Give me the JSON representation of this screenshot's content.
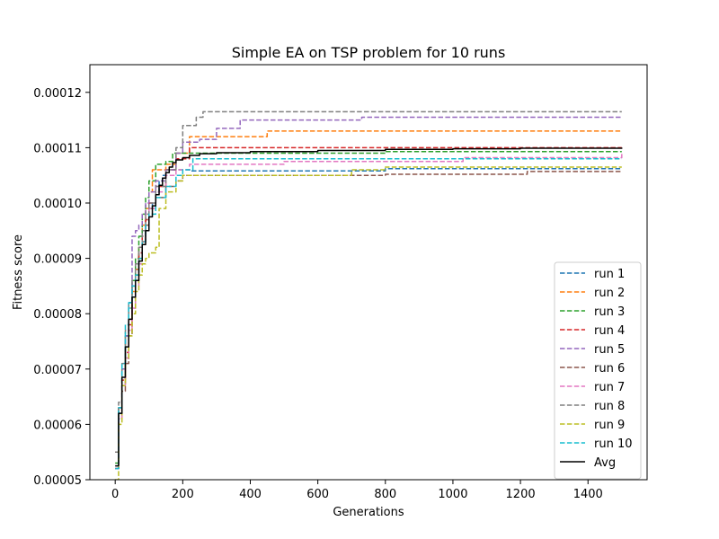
{
  "chart_data": {
    "type": "line",
    "title": "Simple EA on TSP problem for 10 runs",
    "xlabel": "Generations",
    "ylabel": "Fitness score",
    "xlim": [
      -75,
      1575
    ],
    "ylim": [
      5e-05,
      0.000125
    ],
    "xticks": [
      0,
      200,
      400,
      600,
      800,
      1000,
      1200,
      1400
    ],
    "xtick_labels": [
      "0",
      "200",
      "400",
      "600",
      "800",
      "1000",
      "1200",
      "1400"
    ],
    "yticks": [
      5e-05,
      6e-05,
      7e-05,
      8e-05,
      9e-05,
      0.0001,
      0.00011,
      0.00012
    ],
    "ytick_labels": [
      "0.00005",
      "0.00006",
      "0.00007",
      "0.00008",
      "0.00009",
      "0.00010",
      "0.00011",
      "0.00012"
    ],
    "grid": false,
    "legend_position": "lower right",
    "series": [
      {
        "name": "run 1",
        "color": "#1f77b4",
        "style": "dashed",
        "x": [
          0,
          10,
          20,
          30,
          40,
          50,
          60,
          70,
          80,
          90,
          100,
          110,
          120,
          130,
          140,
          150,
          200,
          220,
          400,
          800,
          1500
        ],
        "y": [
          5.2e-05,
          6.2e-05,
          7e-05,
          7.6e-05,
          8.1e-05,
          8.5e-05,
          8.8e-05,
          9.1e-05,
          9.4e-05,
          9.7e-05,
          9.9e-05,
          0.0001,
          0.000102,
          0.000104,
          0.000105,
          0.000106,
          0.000106,
          0.0001058,
          0.0001058,
          0.0001062,
          0.0001062
        ]
      },
      {
        "name": "run 2",
        "color": "#ff7f0e",
        "style": "dashed",
        "x": [
          0,
          10,
          20,
          30,
          40,
          50,
          60,
          70,
          80,
          90,
          100,
          110,
          130,
          150,
          180,
          220,
          300,
          450,
          550,
          1000,
          1500
        ],
        "y": [
          5.2e-05,
          6.1e-05,
          6.8e-05,
          7.4e-05,
          7.9e-05,
          8.4e-05,
          8.8e-05,
          9.2e-05,
          9.6e-05,
          9.9e-05,
          0.000102,
          0.000106,
          0.000106,
          0.000107,
          0.000109,
          0.000112,
          0.000112,
          0.000113,
          0.000113,
          0.000113,
          0.000113
        ]
      },
      {
        "name": "run 3",
        "color": "#2ca02c",
        "style": "dashed",
        "x": [
          0,
          10,
          20,
          30,
          40,
          50,
          60,
          70,
          80,
          90,
          100,
          120,
          150,
          170,
          200,
          300,
          800,
          1500
        ],
        "y": [
          5.3e-05,
          6.3e-05,
          7e-05,
          7.6e-05,
          8.1e-05,
          8.6e-05,
          9e-05,
          9.4e-05,
          9.8e-05,
          0.000101,
          0.000104,
          0.000107,
          0.0001075,
          0.000109,
          0.000109,
          0.000109,
          0.0001093,
          0.0001093
        ]
      },
      {
        "name": "run 4",
        "color": "#d62728",
        "style": "dashed",
        "x": [
          0,
          10,
          20,
          30,
          40,
          50,
          60,
          70,
          80,
          90,
          100,
          120,
          150,
          180,
          220,
          400,
          800,
          1500
        ],
        "y": [
          5.2e-05,
          6.1e-05,
          6.8e-05,
          7.3e-05,
          7.8e-05,
          8.3e-05,
          8.7e-05,
          9.1e-05,
          9.4e-05,
          9.7e-05,
          0.0001,
          0.000103,
          0.000106,
          0.000108,
          0.00011,
          0.00011,
          0.00011,
          0.00011
        ]
      },
      {
        "name": "run 5",
        "color": "#9467bd",
        "style": "dashed",
        "x": [
          0,
          10,
          20,
          30,
          40,
          50,
          60,
          70,
          80,
          90,
          100,
          120,
          150,
          180,
          200,
          250,
          300,
          370,
          500,
          730,
          1500
        ],
        "y": [
          5.2e-05,
          6.3e-05,
          7e-05,
          7.6e-05,
          8.2e-05,
          9.4e-05,
          9.5e-05,
          9.6e-05,
          9.8e-05,
          0.0001,
          0.000102,
          0.000104,
          0.000106,
          0.000109,
          0.000111,
          0.0001115,
          0.0001135,
          0.000115,
          0.000115,
          0.0001155,
          0.0001155
        ]
      },
      {
        "name": "run 6",
        "color": "#8c564b",
        "style": "dashed",
        "x": [
          0,
          10,
          20,
          30,
          40,
          50,
          60,
          70,
          80,
          90,
          100,
          120,
          150,
          180,
          200,
          400,
          800,
          1220,
          1500
        ],
        "y": [
          5.5e-05,
          6.3e-05,
          6.6e-05,
          7.1e-05,
          7.6e-05,
          8.1e-05,
          8.6e-05,
          9e-05,
          9.3e-05,
          9.6e-05,
          9.9e-05,
          0.000101,
          0.000103,
          0.000104,
          0.000105,
          0.000105,
          0.0001052,
          0.0001057,
          0.0001057
        ]
      },
      {
        "name": "run 7",
        "color": "#e377c2",
        "style": "dashed",
        "x": [
          0,
          10,
          20,
          30,
          40,
          50,
          60,
          70,
          80,
          90,
          100,
          120,
          150,
          180,
          200,
          220,
          500,
          1030,
          1500
        ],
        "y": [
          5.2e-05,
          6.1e-05,
          6.7e-05,
          7.2e-05,
          7.7e-05,
          8.1e-05,
          8.5e-05,
          8.9e-05,
          9.3e-05,
          9.6e-05,
          9.9e-05,
          0.000102,
          0.000105,
          0.000106,
          0.000106,
          0.000107,
          0.0001075,
          0.0001082,
          0.000109
        ]
      },
      {
        "name": "run 8",
        "color": "#7f7f7f",
        "style": "dashed",
        "x": [
          0,
          10,
          20,
          30,
          40,
          50,
          60,
          70,
          80,
          90,
          100,
          120,
          150,
          180,
          200,
          240,
          260,
          400,
          800,
          1500
        ],
        "y": [
          5.5e-05,
          6.4e-05,
          7.1e-05,
          7.7e-05,
          8.2e-05,
          8.6e-05,
          8.9e-05,
          9.2e-05,
          9.5e-05,
          9.8e-05,
          0.0001,
          0.000103,
          0.000106,
          0.00011,
          0.000114,
          0.0001155,
          0.0001165,
          0.0001165,
          0.0001165,
          0.0001165
        ]
      },
      {
        "name": "run 9",
        "color": "#bcbd22",
        "style": "dashed",
        "x": [
          0,
          10,
          20,
          30,
          40,
          50,
          60,
          70,
          80,
          90,
          100,
          120,
          130,
          150,
          180,
          200,
          400,
          680,
          700,
          800,
          1500
        ],
        "y": [
          5e-05,
          6e-05,
          6.7e-05,
          7.2e-05,
          7.6e-05,
          8e-05,
          8.4e-05,
          8.7e-05,
          8.9e-05,
          9e-05,
          9.1e-05,
          9.2e-05,
          9.9e-05,
          0.000102,
          0.000104,
          0.000105,
          0.000105,
          0.000105,
          0.000106,
          0.0001065,
          0.0001065
        ]
      },
      {
        "name": "run 10",
        "color": "#17becf",
        "style": "dashed",
        "x": [
          0,
          10,
          20,
          30,
          40,
          50,
          60,
          70,
          80,
          90,
          100,
          120,
          150,
          180,
          200,
          230,
          400,
          800,
          1500
        ],
        "y": [
          5.2e-05,
          6.3e-05,
          7.1e-05,
          7.8e-05,
          8.2e-05,
          8.5e-05,
          8.7e-05,
          9e-05,
          9.3e-05,
          9.6e-05,
          9.8e-05,
          0.000101,
          0.000103,
          0.000105,
          0.000106,
          0.000108,
          0.000108,
          0.000108,
          0.000108
        ]
      },
      {
        "name": "Avg",
        "color": "#000000",
        "style": "solid",
        "x": [
          0,
          10,
          20,
          30,
          40,
          50,
          60,
          70,
          80,
          90,
          100,
          110,
          120,
          130,
          140,
          150,
          160,
          170,
          180,
          200,
          220,
          250,
          300,
          400,
          600,
          800,
          1000,
          1200,
          1500
        ],
        "y": [
          5.25e-05,
          6.2e-05,
          6.85e-05,
          7.4e-05,
          7.9e-05,
          8.3e-05,
          8.6e-05,
          8.95e-05,
          9.25e-05,
          9.5e-05,
          9.75e-05,
          9.95e-05,
          0.0001015,
          0.0001032,
          0.0001045,
          0.0001055,
          0.0001065,
          0.0001073,
          0.0001078,
          0.0001082,
          0.0001086,
          0.0001089,
          0.0001091,
          0.0001093,
          0.0001095,
          0.0001097,
          0.0001098,
          0.0001099,
          0.00011
        ]
      }
    ]
  }
}
